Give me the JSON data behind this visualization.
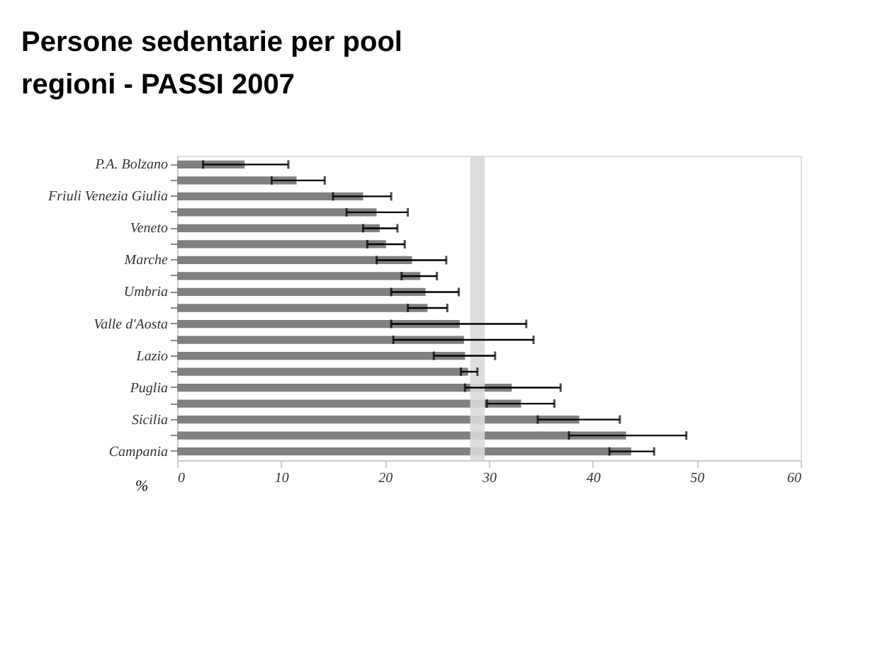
{
  "chart_data": {
    "type": "bar",
    "orientation": "horizontal",
    "title": "Persone sedentarie per pool regioni - PASSI 2007",
    "xlabel": "%",
    "categories": [
      "P.A. Bolzano",
      null,
      "Friuli Venezia Giulia",
      null,
      "Veneto",
      null,
      "Marche",
      null,
      "Umbria",
      null,
      "Valle d'Aosta",
      null,
      "Lazio",
      null,
      "Puglia",
      null,
      "Sicilia",
      null,
      "Campania"
    ],
    "values": [
      6.5,
      11.5,
      17.9,
      19.2,
      19.5,
      20.1,
      22.6,
      23.4,
      23.9,
      24.1,
      27.2,
      27.6,
      27.7,
      28.0,
      32.2,
      33.1,
      38.7,
      43.2,
      43.7
    ],
    "errors": [
      [
        2.5,
        10.7
      ],
      [
        9.1,
        14.2
      ],
      [
        15.0,
        20.6
      ],
      [
        16.3,
        22.2
      ],
      [
        17.9,
        21.2
      ],
      [
        18.3,
        21.9
      ],
      [
        19.2,
        25.9
      ],
      [
        21.6,
        25.0
      ],
      [
        20.6,
        27.1
      ],
      [
        22.2,
        26.0
      ],
      [
        20.6,
        33.6
      ],
      [
        20.8,
        34.3
      ],
      [
        24.7,
        30.6
      ],
      [
        27.3,
        28.9
      ],
      [
        27.7,
        36.9
      ],
      [
        29.8,
        36.3
      ],
      [
        34.7,
        42.6
      ],
      [
        37.7,
        49.0
      ],
      [
        41.6,
        45.9
      ]
    ],
    "color": "#808080",
    "xlim": [
      0,
      60
    ],
    "xticks": [
      0,
      10,
      20,
      30,
      40,
      50,
      60
    ],
    "bands": [
      {
        "axis": "x",
        "from": 28.2,
        "to": 29.6,
        "color": "#d9d9d9"
      }
    ],
    "grid": false
  }
}
